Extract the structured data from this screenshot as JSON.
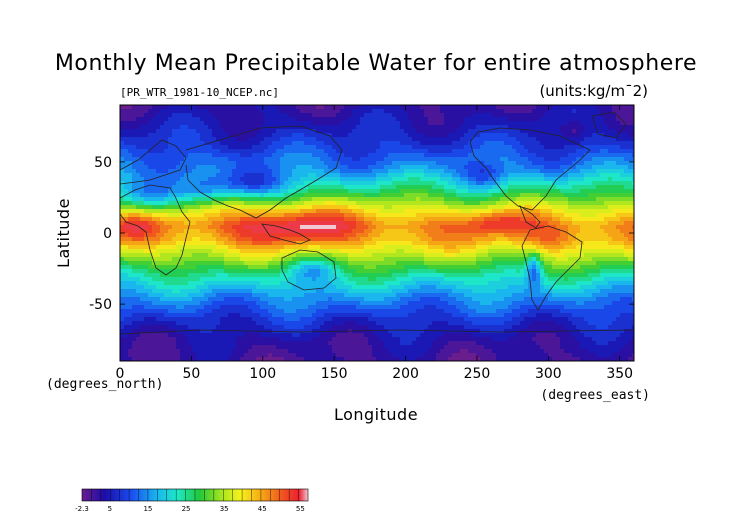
{
  "chart_data": {
    "type": "heatmap",
    "title": "Monthly Mean Precipitable Water for entire atmosphere",
    "subtitle": "[PR_WTR_1981-10_NCEP.nc]",
    "units_label": "(units:kg/m¯2)",
    "xlabel": "Longitude",
    "ylabel": "Latitude",
    "x_unit_label": "(degrees_east)",
    "y_unit_label": "(degrees_north)",
    "xlim": [
      0,
      360
    ],
    "ylim": [
      -90,
      90
    ],
    "x_ticks": [
      0,
      50,
      100,
      150,
      200,
      250,
      300,
      350
    ],
    "y_ticks": [
      50,
      0,
      -50
    ],
    "colorbar": {
      "range": [
        -2.3,
        57
      ],
      "labels": [
        "-2.3",
        "5",
        "15",
        "25",
        "35",
        "45",
        "55"
      ]
    },
    "approx_zonal_mean": [
      {
        "lat": 90,
        "value": 2
      },
      {
        "lat": 75,
        "value": 5
      },
      {
        "lat": 60,
        "value": 9
      },
      {
        "lat": 45,
        "value": 15
      },
      {
        "lat": 30,
        "value": 26
      },
      {
        "lat": 15,
        "value": 40
      },
      {
        "lat": 5,
        "value": 47
      },
      {
        "lat": -5,
        "value": 44
      },
      {
        "lat": -15,
        "value": 36
      },
      {
        "lat": -30,
        "value": 24
      },
      {
        "lat": -45,
        "value": 15
      },
      {
        "lat": -60,
        "value": 8
      },
      {
        "lat": -75,
        "value": 3
      },
      {
        "lat": -90,
        "value": 1
      }
    ]
  }
}
